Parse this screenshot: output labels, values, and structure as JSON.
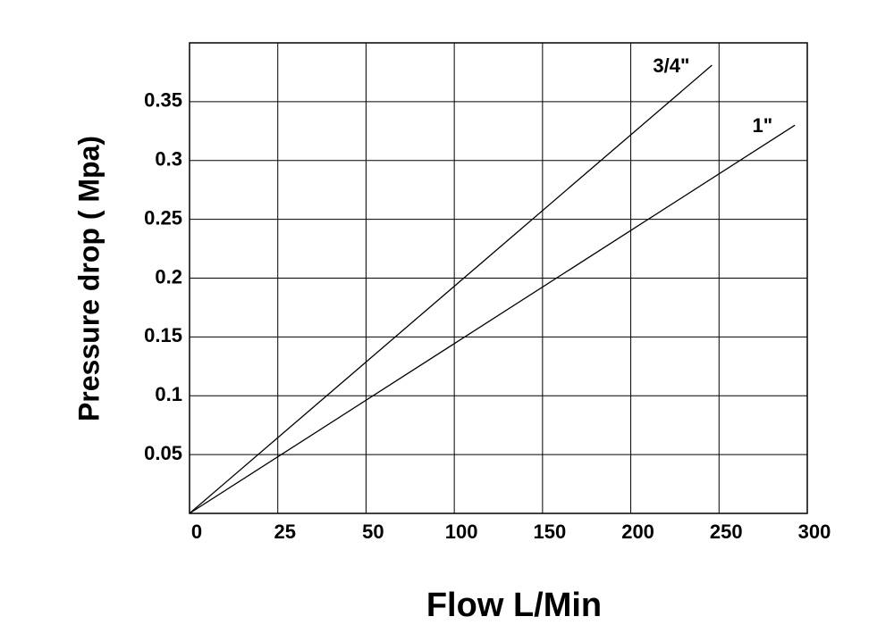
{
  "chart_data": {
    "type": "line",
    "x_label": "Flow L/Min",
    "y_label": "Pressure  drop ( Mpa)",
    "series": [
      {
        "name": "3/4\"",
        "color": "#000000",
        "x": [
          0,
          246
        ],
        "values": [
          0,
          0.381
        ]
      },
      {
        "name": "1\"",
        "color": "#000000",
        "x": [
          0,
          293
        ],
        "values": [
          0,
          0.33
        ]
      }
    ],
    "xlim": [
      0,
      300
    ],
    "xticks": [
      0,
      25,
      50,
      100,
      150,
      200,
      250,
      300
    ],
    "ylim": [
      0,
      0.4
    ],
    "yticks": [
      0.05,
      0.1,
      0.15,
      0.2,
      0.25,
      0.3,
      0.35
    ],
    "grid": true
  }
}
